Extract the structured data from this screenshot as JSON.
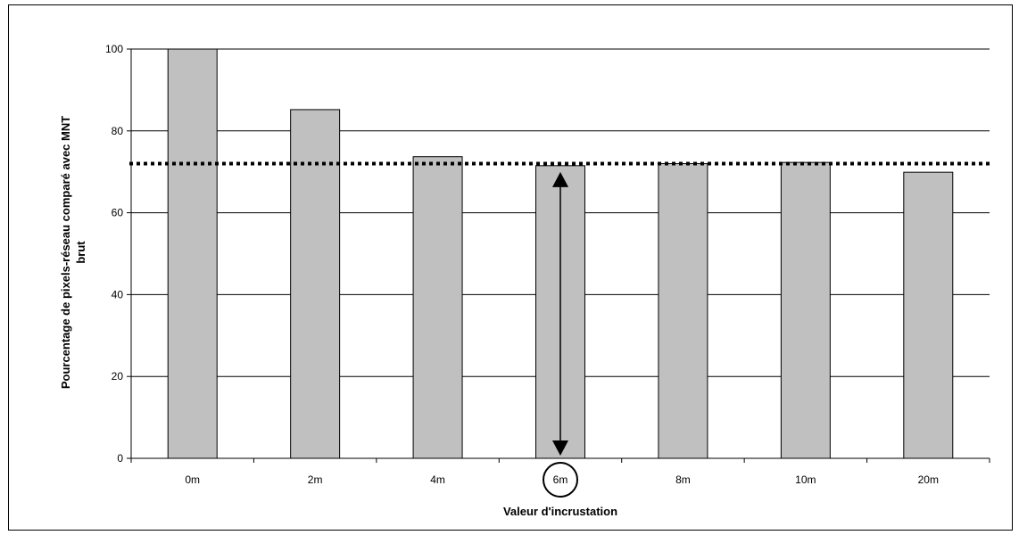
{
  "chart_data": {
    "type": "bar",
    "categories": [
      "0m",
      "2m",
      "4m",
      "6m",
      "8m",
      "10m",
      "20m"
    ],
    "values": [
      100,
      85.2,
      73.7,
      71.5,
      72,
      72.3,
      69.9
    ],
    "ylabel_lines": [
      "Pourcentage de pixels-réseau comparé avec MNT",
      "brut"
    ],
    "xlabel": "Valeur d'incrustation",
    "ylim": [
      0,
      100
    ],
    "yticks": [
      0,
      20,
      40,
      60,
      80,
      100
    ],
    "grid": true,
    "reference_line": 72,
    "highlighted_category": "6m",
    "colors": {
      "bar_fill": "#c0c0c0",
      "bar_stroke": "#000000",
      "grid": "#000000",
      "reference_line": "#000000"
    }
  }
}
